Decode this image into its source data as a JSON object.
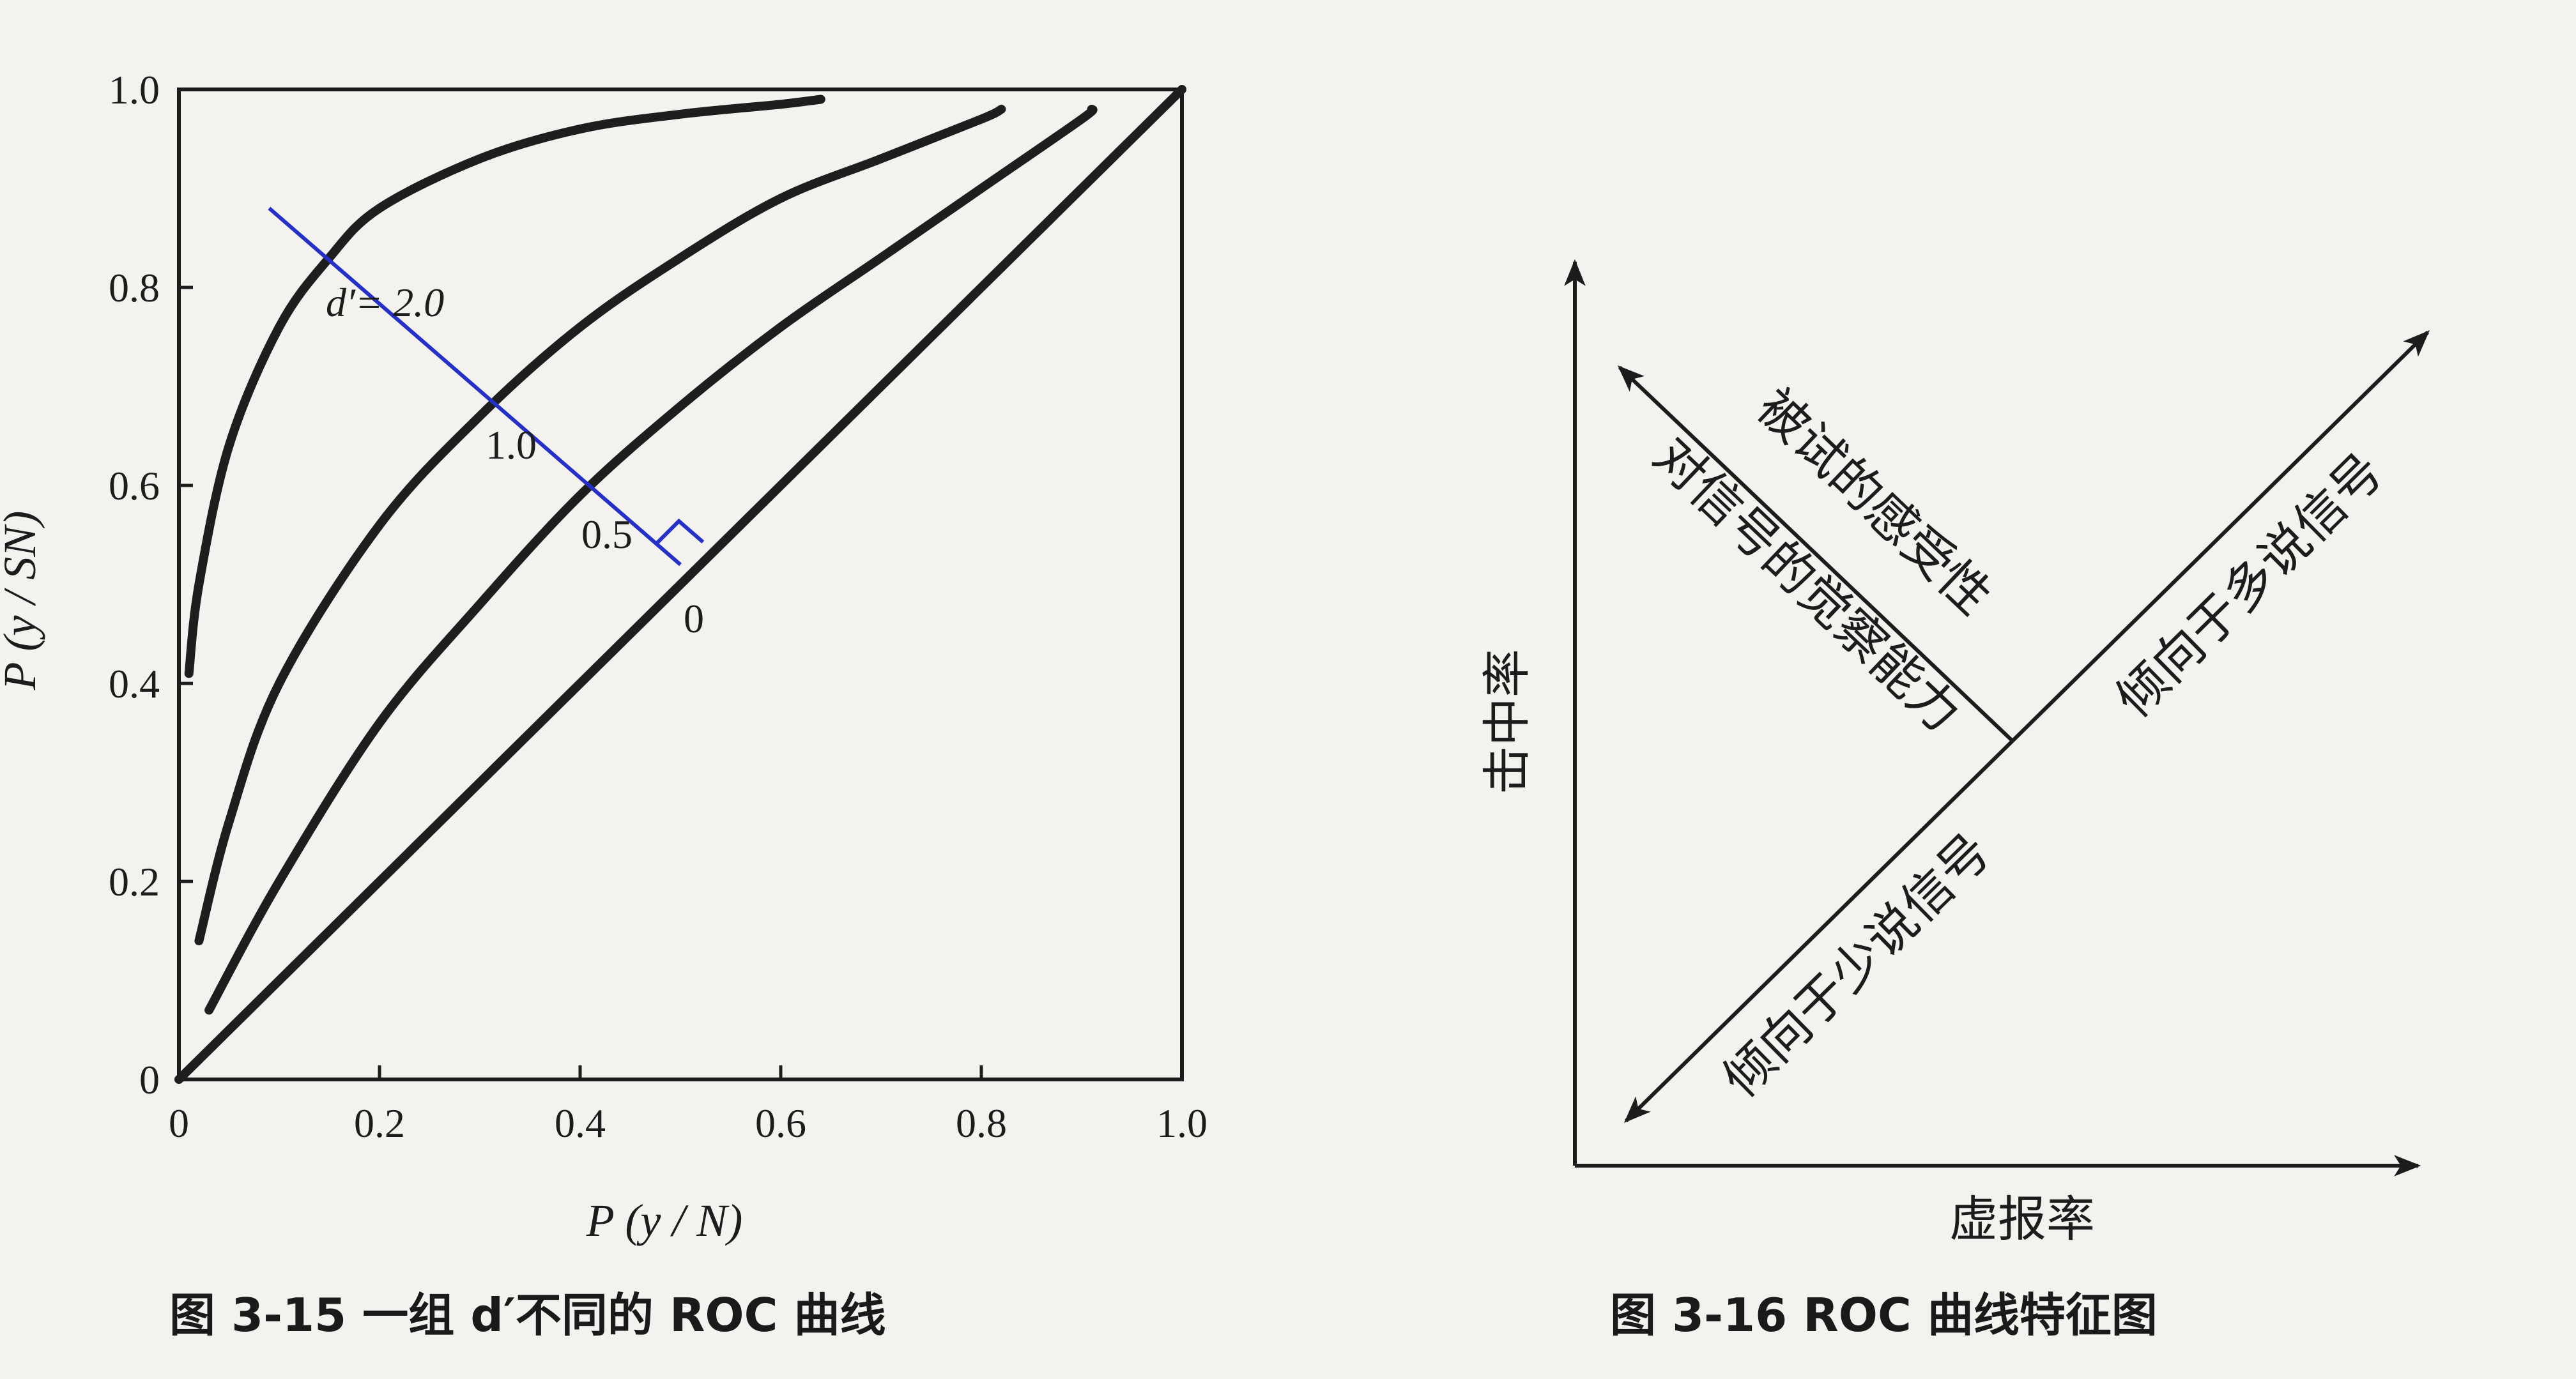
{
  "figure_3_15": {
    "caption": "图 3-15   一组 d′不同的 ROC 曲线",
    "xlabel": "P (y / N)",
    "ylabel": "P (y / SN)",
    "x_ticks": [
      "0",
      "0.2",
      "0.4",
      "0.6",
      "0.8",
      "1.0"
    ],
    "y_ticks": [
      "0",
      "0.2",
      "0.4",
      "0.6",
      "0.8",
      "1.0"
    ],
    "curve_labels": [
      "d′= 2.0",
      "1.0",
      "0.5",
      "0"
    ],
    "annotation_color": "#2430c8"
  },
  "figure_3_16": {
    "caption": "图 3-16    ROC 曲线特征图",
    "xlabel": "虚报率",
    "ylabel": "击中率",
    "arrow_upper_left_line1": "被试的感受性",
    "arrow_upper_left_line2": "对信号的觉察能力",
    "arrow_upper_right": "倾向于多说信号",
    "arrow_lower_left": "倾向于少说信号"
  },
  "chart_data": [
    {
      "type": "line",
      "title": "",
      "xlabel": "P (y / N)",
      "ylabel": "P (y / SN)",
      "xlim": [
        0,
        1
      ],
      "ylim": [
        0,
        1
      ],
      "grid": false,
      "series": [
        {
          "name": "d′= 2.0",
          "x": [
            0.01,
            0.02,
            0.05,
            0.1,
            0.15,
            0.2,
            0.3,
            0.4,
            0.5,
            0.6,
            0.64
          ],
          "y": [
            0.41,
            0.5,
            0.64,
            0.76,
            0.83,
            0.88,
            0.93,
            0.96,
            0.975,
            0.985,
            0.99
          ]
        },
        {
          "name": "1.0",
          "x": [
            0.02,
            0.05,
            0.1,
            0.2,
            0.3,
            0.4,
            0.5,
            0.6,
            0.7,
            0.8,
            0.82
          ],
          "y": [
            0.14,
            0.26,
            0.4,
            0.56,
            0.67,
            0.76,
            0.83,
            0.89,
            0.93,
            0.97,
            0.98
          ]
        },
        {
          "name": "0.5",
          "x": [
            0.03,
            0.1,
            0.2,
            0.3,
            0.4,
            0.5,
            0.6,
            0.7,
            0.8,
            0.9,
            0.91
          ],
          "y": [
            0.07,
            0.2,
            0.36,
            0.48,
            0.59,
            0.68,
            0.76,
            0.83,
            0.9,
            0.97,
            0.98
          ]
        },
        {
          "name": "0",
          "x": [
            0,
            1
          ],
          "y": [
            0,
            1
          ]
        }
      ],
      "annotation_line": {
        "x": [
          0.09,
          0.5
        ],
        "y": [
          0.88,
          0.52
        ]
      }
    }
  ]
}
